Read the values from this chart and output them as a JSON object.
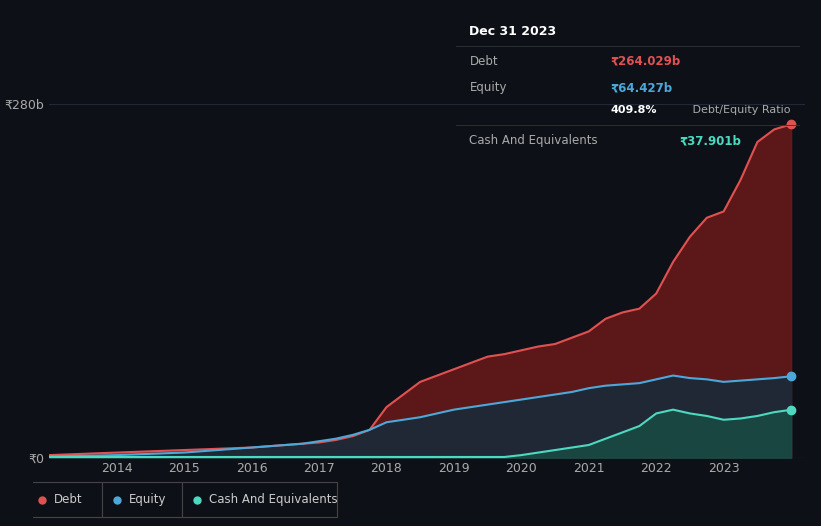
{
  "bg_color": "#0d1117",
  "plot_bg_color": "#0d1117",
  "grid_color": "#1e2a3a",
  "ylabel_text": "₹280b",
  "y0_text": "₹0",
  "xlim": [
    2013.0,
    2024.2
  ],
  "ylim": [
    0,
    300
  ],
  "ytick_value": 280,
  "years": [
    2013.0,
    2013.25,
    2013.5,
    2013.75,
    2014.0,
    2014.25,
    2014.5,
    2014.75,
    2015.0,
    2015.25,
    2015.5,
    2015.75,
    2016.0,
    2016.25,
    2016.5,
    2016.75,
    2017.0,
    2017.25,
    2017.5,
    2017.75,
    2018.0,
    2018.25,
    2018.5,
    2018.75,
    2019.0,
    2019.25,
    2019.5,
    2019.75,
    2020.0,
    2020.25,
    2020.5,
    2020.75,
    2021.0,
    2021.25,
    2021.5,
    2021.75,
    2022.0,
    2022.25,
    2022.5,
    2022.75,
    2023.0,
    2023.25,
    2023.5,
    2023.75,
    2024.0
  ],
  "debt": [
    2,
    2.5,
    3,
    3.5,
    4,
    4.5,
    5,
    5.5,
    6,
    6.5,
    7,
    7.5,
    8,
    9,
    10,
    11,
    12,
    14,
    17,
    22,
    40,
    50,
    60,
    65,
    70,
    75,
    80,
    82,
    85,
    88,
    90,
    95,
    100,
    110,
    115,
    118,
    130,
    155,
    175,
    190,
    195,
    220,
    250,
    260,
    264
  ],
  "equity": [
    1,
    1.2,
    1.4,
    1.6,
    2,
    2.5,
    3,
    3.5,
    4,
    5,
    6,
    7,
    8,
    9,
    10,
    11,
    13,
    15,
    18,
    22,
    28,
    30,
    32,
    35,
    38,
    40,
    42,
    44,
    46,
    48,
    50,
    52,
    55,
    57,
    58,
    59,
    62,
    65,
    63,
    62,
    60,
    61,
    62,
    63,
    64.4
  ],
  "cash": [
    0.5,
    0.5,
    0.5,
    0.5,
    0.5,
    0.5,
    0.5,
    0.5,
    0.5,
    0.5,
    0.5,
    0.5,
    0.5,
    0.5,
    0.5,
    0.5,
    0.5,
    0.5,
    0.5,
    0.5,
    0.5,
    0.5,
    0.5,
    0.5,
    0.5,
    0.5,
    0.5,
    0.5,
    2,
    4,
    6,
    8,
    10,
    15,
    20,
    25,
    35,
    38,
    35,
    33,
    30,
    31,
    33,
    36,
    37.9
  ],
  "debt_color": "#e05252",
  "equity_color": "#4da8da",
  "cash_color": "#4dd9c0",
  "debt_fill": "#6b1a1a",
  "equity_fill": "#1a2a3a",
  "cash_fill": "#1a4a44",
  "xticks": [
    2014,
    2015,
    2016,
    2017,
    2018,
    2019,
    2020,
    2021,
    2022,
    2023
  ],
  "tooltip_title": "Dec 31 2023",
  "tooltip_debt_val": "₹264.029b",
  "tooltip_equity_val": "₹64.427b",
  "tooltip_ratio": "409.8%",
  "tooltip_cash_val": "₹37.901b",
  "legend_labels": [
    "Debt",
    "Equity",
    "Cash And Equivalents"
  ]
}
